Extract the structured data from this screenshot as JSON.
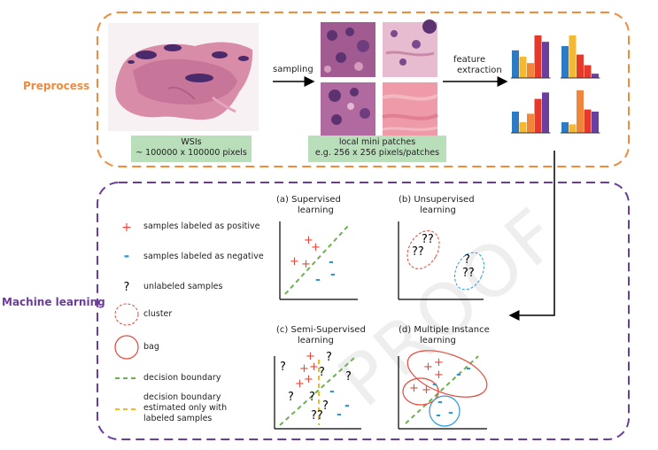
{
  "watermark": "PROOF",
  "preprocess": {
    "label": "Preprocess",
    "wsi_caption_line1": "WSIs",
    "wsi_caption_line2": "~ 100000 x 100000 pixels",
    "sampling_label": "sampling",
    "patches_caption_line1": "local mini patches",
    "patches_caption_line2": "e.g. 256 x 256 pixels/patches",
    "feature_label_line1": "feature",
    "feature_label_line2": "extraction",
    "feature_charts": [
      {
        "values": [
          0.65,
          0.5,
          0.35,
          1.0,
          0.85
        ],
        "colors": [
          "#2c7bc4",
          "#f5b82e",
          "#f0863a",
          "#e53a2b",
          "#6b3fa0"
        ]
      },
      {
        "values": [
          0.75,
          1.0,
          0.55,
          0.3,
          0.1
        ],
        "colors": [
          "#2c7bc4",
          "#f5b82e",
          "#e53a2b",
          "#e53a2b",
          "#6b3fa0"
        ]
      },
      {
        "values": [
          0.5,
          0.25,
          0.45,
          0.8,
          0.95
        ],
        "colors": [
          "#2c7bc4",
          "#f5b82e",
          "#f0863a",
          "#e53a2b",
          "#6b3fa0"
        ]
      },
      {
        "values": [
          0.25,
          0.2,
          1.0,
          0.55,
          0.5
        ],
        "colors": [
          "#2c7bc4",
          "#f5b82e",
          "#f0863a",
          "#e53a2b",
          "#6b3fa0"
        ]
      }
    ]
  },
  "ml": {
    "label": "Machine learning",
    "legend": [
      {
        "symbol": "+",
        "text": "samples labeled as positive"
      },
      {
        "symbol": "-",
        "text": "samples labeled as negative"
      },
      {
        "symbol": "?",
        "text": "unlabeled samples"
      },
      {
        "symbol": "cluster-circle",
        "text": "cluster"
      },
      {
        "symbol": "bag-circle",
        "text": "bag"
      },
      {
        "symbol": "green-dash",
        "text": "decision boundary"
      },
      {
        "symbol": "orange-dash",
        "text": "decision boundary estimated only with labeled samples"
      }
    ],
    "legend_last_lines": [
      "decision boundary",
      "estimated only with",
      "labeled samples"
    ],
    "panels": {
      "a": {
        "title1": "(a) Supervised",
        "title2": "learning"
      },
      "b": {
        "title1": "(b) Unsupervised",
        "title2": "learning"
      },
      "c": {
        "title1": "(c) Semi-Supervised",
        "title2": "learning"
      },
      "d": {
        "title1": "(d) Multiple Instance",
        "title2": "learning"
      }
    }
  },
  "colors": {
    "preprocess": "#f08a3c",
    "ml": "#6a3d9a",
    "positive": "#e8463a",
    "negative": "#2a9ad6",
    "boundary": "#6bb24e",
    "boundary_labeled": "#f2b81f",
    "caption_bg": "#b9dfba"
  }
}
